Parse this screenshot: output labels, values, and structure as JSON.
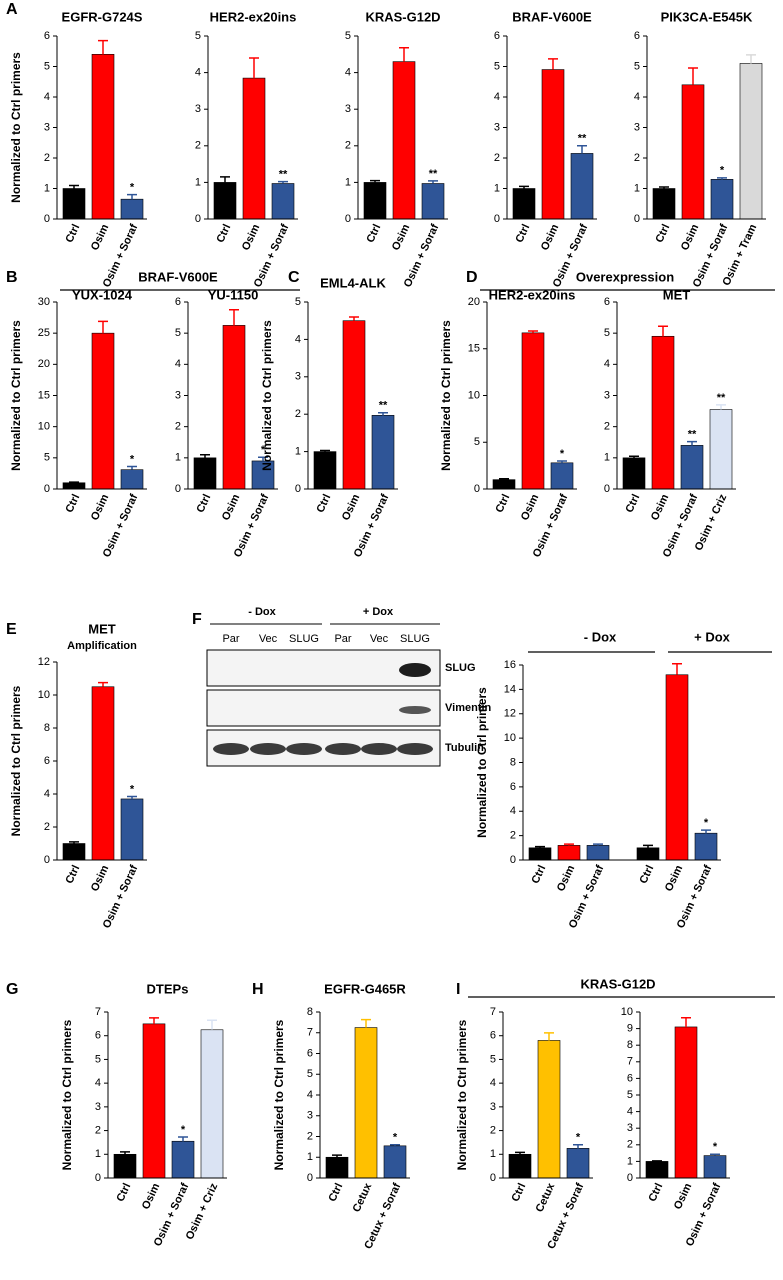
{
  "chart_data": [
    {
      "type": "bar",
      "panel": "A",
      "title": "EGFR-G724S",
      "ylabel": "Normalized to Ctrl primers",
      "categories": [
        "Ctrl",
        "Osim",
        "Osim + Soraf"
      ],
      "values": [
        1.0,
        5.4,
        0.65
      ],
      "errors": [
        0.1,
        0.45,
        0.15
      ],
      "colors": [
        "#000000",
        "#ff0000",
        "#2f5597"
      ],
      "significance": [
        null,
        null,
        "*"
      ],
      "ylim": [
        0,
        6
      ],
      "yticks": [
        0,
        1,
        2,
        3,
        4,
        5,
        6
      ]
    },
    {
      "type": "bar",
      "title": "HER2-ex20ins",
      "categories": [
        "Ctrl",
        "Osim",
        "Osim + Soraf"
      ],
      "values": [
        1.0,
        3.85,
        0.97
      ],
      "errors": [
        0.15,
        0.55,
        0.05
      ],
      "colors": [
        "#000000",
        "#ff0000",
        "#2f5597"
      ],
      "significance": [
        null,
        null,
        "**"
      ],
      "ylim": [
        0,
        5
      ],
      "yticks": [
        0,
        1,
        2,
        3,
        4,
        5
      ]
    },
    {
      "type": "bar",
      "title": "KRAS-G12D",
      "categories": [
        "Ctrl",
        "Osim",
        "Osim + Soraf"
      ],
      "values": [
        1.0,
        4.3,
        0.97
      ],
      "errors": [
        0.05,
        0.38,
        0.07
      ],
      "colors": [
        "#000000",
        "#ff0000",
        "#2f5597"
      ],
      "significance": [
        null,
        null,
        "**"
      ],
      "ylim": [
        0,
        5
      ],
      "yticks": [
        0,
        1,
        2,
        3,
        4,
        5
      ]
    },
    {
      "type": "bar",
      "title": "BRAF-V600E",
      "categories": [
        "Ctrl",
        "Osim",
        "Osim + Soraf"
      ],
      "values": [
        1.0,
        4.9,
        2.15
      ],
      "errors": [
        0.07,
        0.35,
        0.25
      ],
      "colors": [
        "#000000",
        "#ff0000",
        "#2f5597"
      ],
      "significance": [
        null,
        null,
        "**"
      ],
      "ylim": [
        0,
        6
      ],
      "yticks": [
        0,
        1,
        2,
        3,
        4,
        5,
        6
      ]
    },
    {
      "type": "bar",
      "title": "PIK3CA-E545K",
      "categories": [
        "Ctrl",
        "Osim",
        "Osim + Soraf",
        "Osim + Tram"
      ],
      "values": [
        1.0,
        4.4,
        1.3,
        5.1
      ],
      "errors": [
        0.05,
        0.55,
        0.05,
        0.28
      ],
      "colors": [
        "#000000",
        "#ff0000",
        "#2f5597",
        "#d9d9d9"
      ],
      "significance": [
        null,
        null,
        "*",
        null
      ],
      "ylim": [
        0,
        6
      ],
      "yticks": [
        0,
        1,
        2,
        3,
        4,
        5,
        6
      ]
    },
    {
      "type": "bar",
      "panel": "B",
      "title": "YUX-1024",
      "ylabel": "Normalized to Ctrl primers",
      "categories": [
        "Ctrl",
        "Osim",
        "Osim + Soraf"
      ],
      "values": [
        1.0,
        25,
        3.1
      ],
      "errors": [
        0.1,
        1.9,
        0.5
      ],
      "colors": [
        "#000000",
        "#ff0000",
        "#2f5597"
      ],
      "significance": [
        null,
        null,
        "*"
      ],
      "ylim": [
        0,
        30
      ],
      "yticks": [
        0,
        5,
        10,
        15,
        20,
        25,
        30
      ]
    },
    {
      "type": "bar",
      "title": "YU-1150",
      "categories": [
        "Ctrl",
        "Osim",
        "Osim + Soraf"
      ],
      "values": [
        1.0,
        5.25,
        0.9
      ],
      "errors": [
        0.1,
        0.5,
        0.12
      ],
      "colors": [
        "#000000",
        "#ff0000",
        "#2f5597"
      ],
      "significance": [
        null,
        null,
        "*"
      ],
      "ylim": [
        0,
        6
      ],
      "yticks": [
        0,
        1,
        2,
        3,
        4,
        5,
        6
      ]
    },
    {
      "type": "bar",
      "panel": "C",
      "title": "EML4-ALK",
      "ylabel": "Normalized to Ctrl primers",
      "categories": [
        "Ctrl",
        "Osim",
        "Osim + Soraf"
      ],
      "values": [
        1.0,
        4.5,
        1.97
      ],
      "errors": [
        0.03,
        0.1,
        0.07
      ],
      "colors": [
        "#000000",
        "#ff0000",
        "#2f5597"
      ],
      "significance": [
        null,
        null,
        "**"
      ],
      "ylim": [
        0,
        5
      ],
      "yticks": [
        0,
        1,
        2,
        3,
        4,
        5
      ]
    },
    {
      "type": "bar",
      "panel": "D",
      "title": "HER2-ex20ins",
      "ylabel": "Normalized to Ctrl primers",
      "categories": [
        "Ctrl",
        "Osim",
        "Osim + Soraf"
      ],
      "values": [
        1.0,
        16.7,
        2.8
      ],
      "errors": [
        0.1,
        0.2,
        0.2
      ],
      "colors": [
        "#000000",
        "#ff0000",
        "#2f5597"
      ],
      "significance": [
        null,
        null,
        "*"
      ],
      "ylim": [
        0,
        20
      ],
      "yticks": [
        0,
        5,
        10,
        15,
        20
      ]
    },
    {
      "type": "bar",
      "title": "MET",
      "categories": [
        "Ctrl",
        "Osim",
        "Osim + Soraf",
        "Osim + Criz"
      ],
      "values": [
        1.0,
        4.9,
        1.4,
        2.55
      ],
      "errors": [
        0.05,
        0.32,
        0.12,
        0.15
      ],
      "colors": [
        "#000000",
        "#ff0000",
        "#2f5597",
        "#dae3f3"
      ],
      "significance": [
        null,
        null,
        "**",
        "**"
      ],
      "ylim": [
        0,
        6
      ],
      "yticks": [
        0,
        1,
        2,
        3,
        4,
        5,
        6
      ]
    },
    {
      "type": "bar",
      "panel": "E",
      "title": "MET",
      "subtitle": "Amplification",
      "ylabel": "Normalized to Ctrl primers",
      "categories": [
        "Ctrl",
        "Osim",
        "Osim + Soraf"
      ],
      "values": [
        1.0,
        10.5,
        3.7
      ],
      "errors": [
        0.1,
        0.25,
        0.15
      ],
      "colors": [
        "#000000",
        "#ff0000",
        "#2f5597"
      ],
      "significance": [
        null,
        null,
        "*"
      ],
      "ylim": [
        0,
        12
      ],
      "yticks": [
        0,
        2,
        4,
        6,
        8,
        10,
        12
      ]
    },
    {
      "type": "bar",
      "ylabel": "Normalized to Ctrl primers",
      "categories": [
        "Ctrl",
        "Osim",
        "Osim + Soraf",
        "Ctrl",
        "Osim",
        "Osim + Soraf"
      ],
      "values": [
        1.0,
        1.2,
        1.2,
        1.0,
        15.2,
        2.2
      ],
      "errors": [
        0.1,
        0.1,
        0.1,
        0.2,
        0.9,
        0.25
      ],
      "colors": [
        "#000000",
        "#ff0000",
        "#2f5597",
        "#000000",
        "#ff0000",
        "#2f5597"
      ],
      "significance": [
        null,
        null,
        null,
        null,
        null,
        "*"
      ],
      "ylim": [
        0,
        16
      ],
      "yticks": [
        0,
        2,
        4,
        6,
        8,
        10,
        12,
        14,
        16
      ]
    },
    {
      "type": "bar",
      "panel": "G",
      "title": "DTEPs",
      "ylabel": "Normalized to Ctrl primers",
      "categories": [
        "Ctrl",
        "Osim",
        "Osim + Soraf",
        "Osim + Criz"
      ],
      "values": [
        1.0,
        6.5,
        1.55,
        6.25
      ],
      "errors": [
        0.1,
        0.25,
        0.18,
        0.4
      ],
      "colors": [
        "#000000",
        "#ff0000",
        "#2f5597",
        "#dae3f3"
      ],
      "significance": [
        null,
        null,
        "*",
        null
      ],
      "ylim": [
        0,
        7
      ],
      "yticks": [
        0,
        1,
        2,
        3,
        4,
        5,
        6,
        7
      ]
    },
    {
      "type": "bar",
      "panel": "H",
      "title": "EGFR-G465R",
      "ylabel": "Normalized to Ctrl primers",
      "categories": [
        "Ctrl",
        "Cetux",
        "Cetux + Soraf"
      ],
      "values": [
        1.0,
        7.25,
        1.55
      ],
      "errors": [
        0.1,
        0.38,
        0.05
      ],
      "colors": [
        "#000000",
        "#ffc000",
        "#2f5597"
      ],
      "significance": [
        null,
        null,
        "*"
      ],
      "ylim": [
        0,
        8
      ],
      "yticks": [
        0,
        1,
        2,
        3,
        4,
        5,
        6,
        7,
        8
      ]
    },
    {
      "type": "bar",
      "panel": "I",
      "ylabel": "Normalized to Ctrl primers",
      "categories": [
        "Ctrl",
        "Cetux",
        "Cetux + Soraf"
      ],
      "values": [
        1.0,
        5.8,
        1.25
      ],
      "errors": [
        0.08,
        0.32,
        0.15
      ],
      "colors": [
        "#000000",
        "#ffc000",
        "#2f5597"
      ],
      "significance": [
        null,
        null,
        "*"
      ],
      "ylim": [
        0,
        7
      ],
      "yticks": [
        0,
        1,
        2,
        3,
        4,
        5,
        6,
        7
      ]
    },
    {
      "type": "bar",
      "categories": [
        "Ctrl",
        "Osim",
        "Osim + Soraf"
      ],
      "values": [
        1.0,
        9.1,
        1.35
      ],
      "errors": [
        0.03,
        0.55,
        0.08
      ],
      "colors": [
        "#000000",
        "#ff0000",
        "#2f5597"
      ],
      "significance": [
        null,
        null,
        "*"
      ],
      "ylim": [
        0,
        10
      ],
      "yticks": [
        0,
        1,
        2,
        3,
        4,
        5,
        6,
        7,
        8,
        9,
        10
      ]
    }
  ],
  "headers": [
    "BRAF-V600E",
    "Overexpression",
    "- Dox",
    "+ Dox",
    "KRAS-G12D"
  ],
  "blot": {
    "panel": "F",
    "groups": [
      "- Dox",
      "+ Dox"
    ],
    "lanes": [
      "Par",
      "Vec",
      "SLUG",
      "Par",
      "Vec",
      "SLUG"
    ],
    "bands": [
      "SLUG",
      "Vimentin",
      "Tubulin"
    ]
  }
}
